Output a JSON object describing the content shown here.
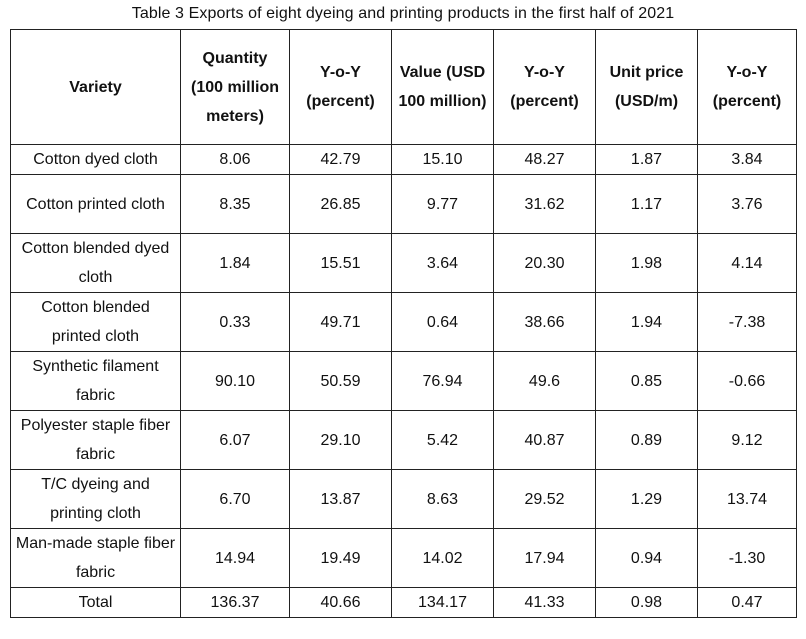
{
  "title": "Table 3 Exports of eight dyeing and printing products in the first half of 2021",
  "headers": [
    "Variety",
    "Quantity (100 million meters)",
    "Y-o-Y (percent)",
    "Value (USD 100 million)",
    "Y-o-Y (percent)",
    "Unit price (USD/m)",
    "Y-o-Y (percent)"
  ],
  "rows": [
    [
      "Cotton dyed cloth",
      "8.06",
      "42.79",
      "15.10",
      "48.27",
      "1.87",
      "3.84"
    ],
    [
      "Cotton printed cloth",
      "8.35",
      "26.85",
      "9.77",
      "31.62",
      "1.17",
      "3.76"
    ],
    [
      "Cotton blended dyed cloth",
      "1.84",
      "15.51",
      "3.64",
      "20.30",
      "1.98",
      "4.14"
    ],
    [
      "Cotton blended printed cloth",
      "0.33",
      "49.71",
      "0.64",
      "38.66",
      "1.94",
      "-7.38"
    ],
    [
      "Synthetic filament fabric",
      "90.10",
      "50.59",
      "76.94",
      "49.6",
      "0.85",
      "-0.66"
    ],
    [
      "Polyester staple fiber fabric",
      "6.07",
      "29.10",
      "5.42",
      "40.87",
      "0.89",
      "9.12"
    ],
    [
      "T/C dyeing and printing cloth",
      "6.70",
      "13.87",
      "8.63",
      "29.52",
      "1.29",
      "13.74"
    ],
    [
      "Man-made staple fiber fabric",
      "14.94",
      "19.49",
      "14.02",
      "17.94",
      "0.94",
      "-1.30"
    ],
    [
      "Total",
      "136.37",
      "40.66",
      "134.17",
      "41.33",
      "0.98",
      "0.47"
    ]
  ]
}
